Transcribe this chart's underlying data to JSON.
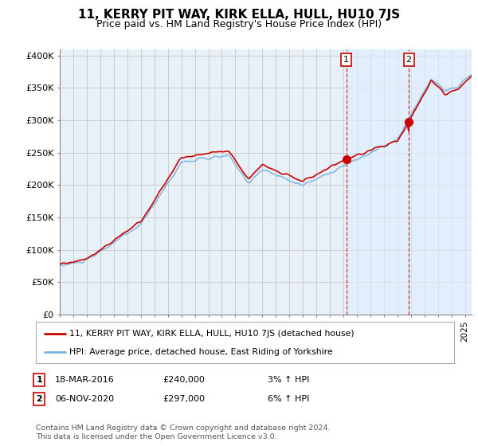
{
  "title": "11, KERRY PIT WAY, KIRK ELLA, HULL, HU10 7JS",
  "subtitle": "Price paid vs. HM Land Registry's House Price Index (HPI)",
  "yticks": [
    0,
    50000,
    100000,
    150000,
    200000,
    250000,
    300000,
    350000,
    400000
  ],
  "ytick_labels": [
    "£0",
    "£50K",
    "£100K",
    "£150K",
    "£200K",
    "£250K",
    "£300K",
    "£350K",
    "£400K"
  ],
  "ylim": [
    0,
    410000
  ],
  "xlim_start": 1995.0,
  "xlim_end": 2025.5,
  "grid_color": "#cccccc",
  "hpi_color": "#7ab3e0",
  "price_color": "#cc0000",
  "highlight_color": "#ddeeff",
  "sale1_date": 2016.21,
  "sale1_price": 240000,
  "sale2_date": 2020.84,
  "sale2_price": 297000,
  "legend1_label": "11, KERRY PIT WAY, KIRK ELLA, HULL, HU10 7JS (detached house)",
  "legend2_label": "HPI: Average price, detached house, East Riding of Yorkshire",
  "annotation1_label": "1",
  "annotation1_date": "18-MAR-2016",
  "annotation1_price": "£240,000",
  "annotation1_pct": "3% ↑ HPI",
  "annotation2_label": "2",
  "annotation2_date": "06-NOV-2020",
  "annotation2_price": "£297,000",
  "annotation2_pct": "6% ↑ HPI",
  "footer": "Contains HM Land Registry data © Crown copyright and database right 2024.\nThis data is licensed under the Open Government Licence v3.0.",
  "bg_color": "#ffffff",
  "plot_bg_color": "#e8f0f8"
}
